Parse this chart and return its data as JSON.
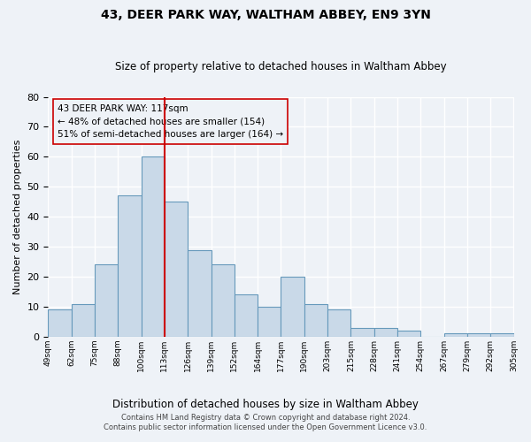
{
  "title1": "43, DEER PARK WAY, WALTHAM ABBEY, EN9 3YN",
  "title2": "Size of property relative to detached houses in Waltham Abbey",
  "xlabel": "Distribution of detached houses by size in Waltham Abbey",
  "ylabel": "Number of detached properties",
  "bar_values": [
    9,
    11,
    24,
    47,
    60,
    45,
    29,
    24,
    14,
    10,
    20,
    11,
    9,
    3,
    3,
    2,
    0,
    1,
    1,
    1
  ],
  "categories": [
    "49sqm",
    "62sqm",
    "75sqm",
    "88sqm",
    "100sqm",
    "113sqm",
    "126sqm",
    "139sqm",
    "152sqm",
    "164sqm",
    "177sqm",
    "190sqm",
    "203sqm",
    "215sqm",
    "228sqm",
    "241sqm",
    "254sqm",
    "267sqm",
    "279sqm",
    "292sqm",
    "305sqm"
  ],
  "bar_color": "#c9d9e8",
  "bar_edge_color": "#6699bb",
  "vline_color": "#cc0000",
  "annotation_text1": "43 DEER PARK WAY: 117sqm",
  "annotation_text2": "← 48% of detached houses are smaller (154)",
  "annotation_text3": "51% of semi-detached houses are larger (164) →",
  "annotation_fontsize": 7.5,
  "footer1": "Contains HM Land Registry data © Crown copyright and database right 2024.",
  "footer2": "Contains public sector information licensed under the Open Government Licence v3.0.",
  "ylim": [
    0,
    80
  ],
  "yticks": [
    0,
    10,
    20,
    30,
    40,
    50,
    60,
    70,
    80
  ],
  "bg_color": "#eef2f7",
  "grid_color": "#ffffff"
}
